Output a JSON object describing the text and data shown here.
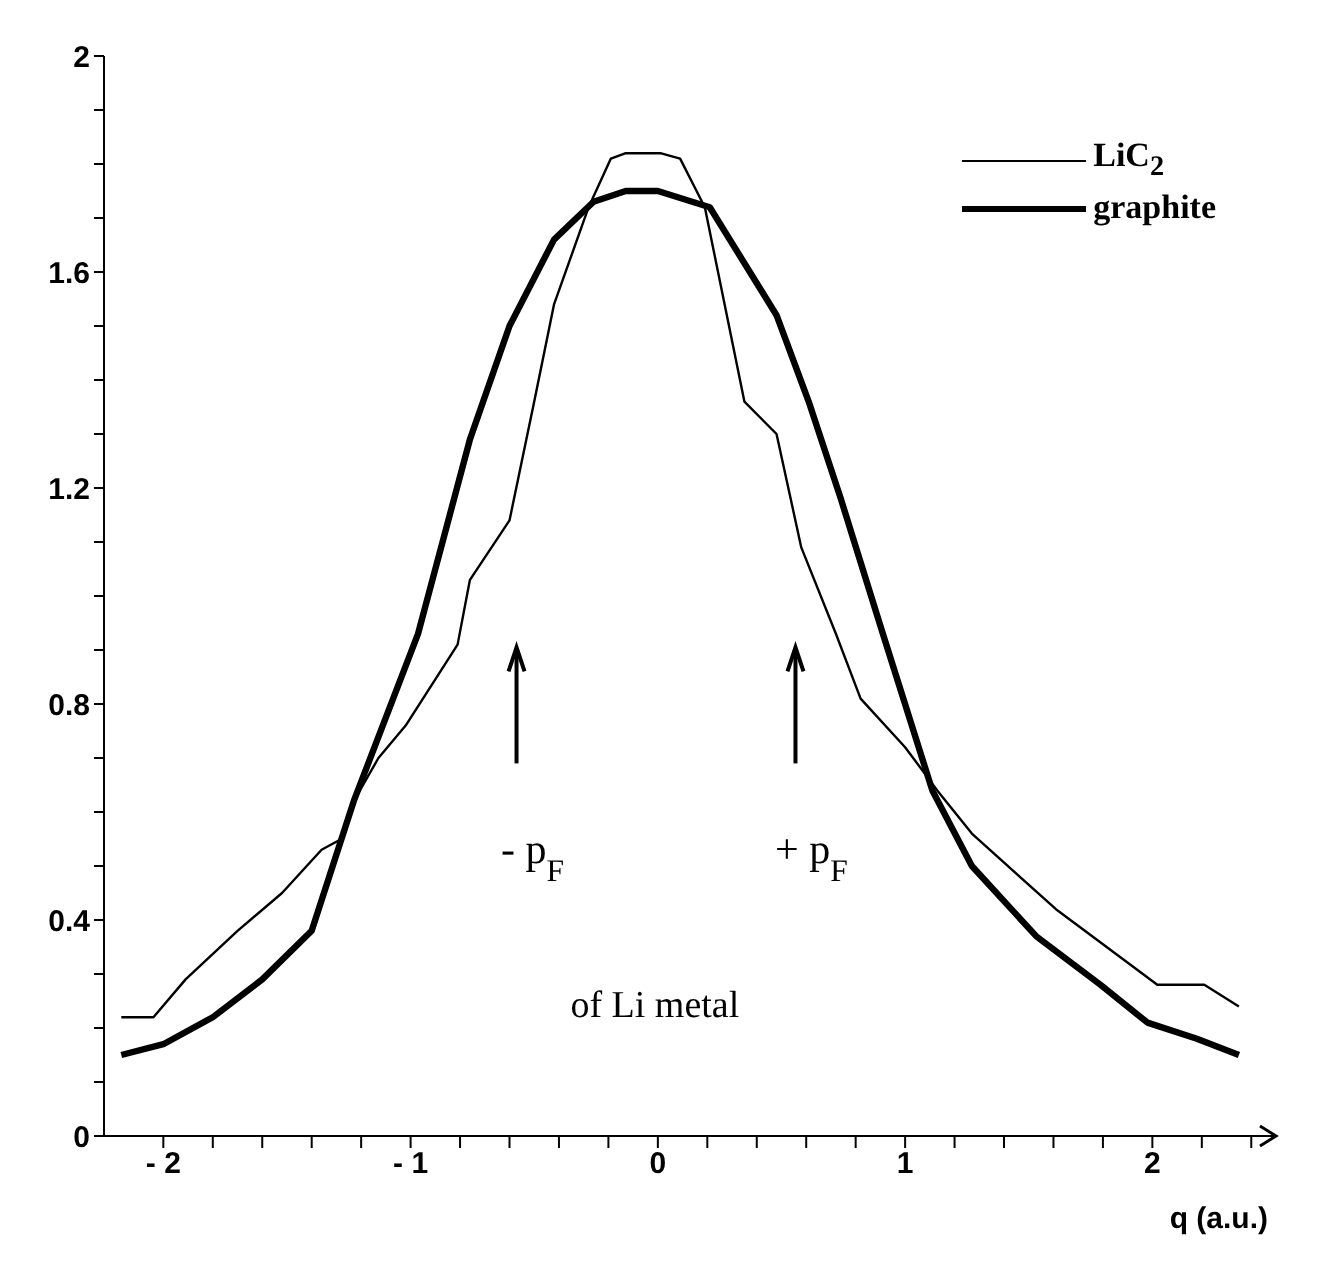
{
  "chart_data": {
    "type": "line",
    "xlabel": "q (a.u.)",
    "xlim": [
      -2.24,
      2.5
    ],
    "ylim": [
      0,
      2
    ],
    "xticks": [
      {
        "value": -2,
        "label": "- 2"
      },
      {
        "value": -1.8,
        "label": null
      },
      {
        "value": -1.6,
        "label": null
      },
      {
        "value": -1.4,
        "label": null
      },
      {
        "value": -1.2,
        "label": null
      },
      {
        "value": -1,
        "label": "- 1"
      },
      {
        "value": -0.8,
        "label": null
      },
      {
        "value": -0.6,
        "label": null
      },
      {
        "value": -0.4,
        "label": null
      },
      {
        "value": -0.2,
        "label": null
      },
      0,
      {
        "value": 0.2,
        "label": null
      },
      {
        "value": 0.4,
        "label": null
      },
      {
        "value": 0.6,
        "label": null
      },
      {
        "value": 0.8,
        "label": null
      },
      1,
      {
        "value": 1.2,
        "label": null
      },
      {
        "value": 1.4,
        "label": null
      },
      {
        "value": 1.6,
        "label": null
      },
      {
        "value": 1.8,
        "label": null
      },
      2,
      {
        "value": 2.2,
        "label": null
      },
      {
        "value": 2.4,
        "label": null
      }
    ],
    "yticks": [
      0,
      {
        "value": 0.1,
        "label": null
      },
      {
        "value": 0.2,
        "label": null
      },
      {
        "value": 0.3,
        "label": null
      },
      0.4,
      {
        "value": 0.5,
        "label": null
      },
      {
        "value": 0.6,
        "label": null
      },
      {
        "value": 0.7,
        "label": null
      },
      0.8,
      {
        "value": 0.9,
        "label": null
      },
      {
        "value": 1.0,
        "label": null
      },
      {
        "value": 1.1,
        "label": null
      },
      1.2,
      {
        "value": 1.3,
        "label": null
      },
      {
        "value": 1.4,
        "label": null
      },
      {
        "value": 1.5,
        "label": null
      },
      1.6,
      {
        "value": 1.7,
        "label": null
      },
      {
        "value": 1.8,
        "label": null
      },
      {
        "value": 1.9,
        "label": null
      },
      2
    ],
    "legend": "top right",
    "marker": "none",
    "line_style": "solid",
    "series": [
      {
        "name": "LiC$_{2}$",
        "color": "#000000",
        "x": [
          -2.17,
          -2.04,
          -1.91,
          -1.7,
          -1.52,
          -1.36,
          -1.28,
          -1.23,
          -1.13,
          -1.02,
          -0.81,
          -0.76,
          -0.6,
          -0.5,
          -0.42,
          -0.28,
          -0.19,
          -0.13,
          0.01,
          0.09,
          0.19,
          0.35,
          0.48,
          0.58,
          0.72,
          0.82,
          1.0,
          1.13,
          1.27,
          1.61,
          2.02,
          2.21,
          2.35
        ],
        "values": [
          0.22,
          0.22,
          0.29,
          0.38,
          0.45,
          0.53,
          0.55,
          0.62,
          0.7,
          0.76,
          0.91,
          1.03,
          1.14,
          1.36,
          1.54,
          1.72,
          1.81,
          1.82,
          1.82,
          1.81,
          1.72,
          1.36,
          1.3,
          1.09,
          0.93,
          0.81,
          0.72,
          0.64,
          0.56,
          0.42,
          0.28,
          0.28,
          0.24
        ]
      },
      {
        "name": "graphite",
        "color": "#000000",
        "x": [
          -2.17,
          -2.0,
          -1.8,
          -1.6,
          -1.4,
          -1.23,
          -0.97,
          -0.76,
          -0.6,
          -0.42,
          -0.26,
          -0.13,
          0,
          0.21,
          0.48,
          0.61,
          0.74,
          0.91,
          1.11,
          1.27,
          1.53,
          1.79,
          1.98,
          2.18,
          2.35
        ],
        "values": [
          0.15,
          0.17,
          0.22,
          0.29,
          0.38,
          0.62,
          0.93,
          1.29,
          1.5,
          1.66,
          1.73,
          1.75,
          1.75,
          1.72,
          1.52,
          1.36,
          1.18,
          0.93,
          0.64,
          0.5,
          0.37,
          0.28,
          0.21,
          0.18,
          0.15
        ]
      }
    ],
    "annotations": [
      "- p$_{F}$",
      "+ p$_{F}$",
      "of Li metal"
    ]
  }
}
